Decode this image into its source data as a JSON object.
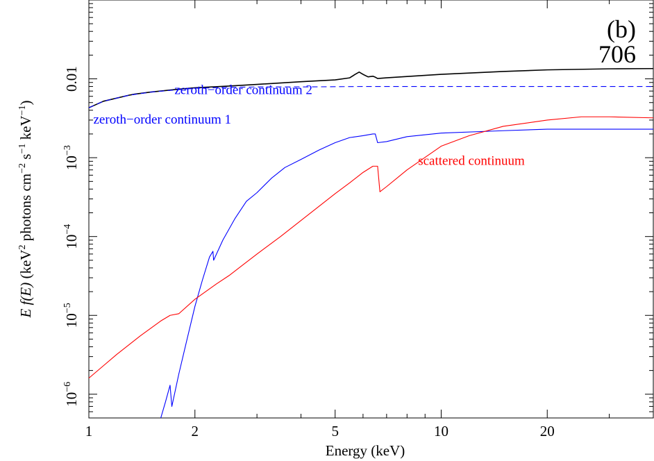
{
  "chart_data": {
    "type": "line",
    "panel_label": "(b)",
    "panel_id": "706",
    "xlabel": "Energy (keV)",
    "ylabel_parts": {
      "E": "E",
      "fE": "f(E)",
      "open": " (keV",
      "exp2": "2",
      "photons": " photons cm",
      "expm2": "−2",
      "s": " s",
      "expm1": "−1",
      "kev": " keV",
      "expm1b": "−1",
      "close": ")"
    },
    "x_scale": "log",
    "y_scale": "log",
    "xlim": [
      1,
      40
    ],
    "ylim": [
      5e-07,
      0.1
    ],
    "x_ticks": [
      {
        "value": 1,
        "label": "1"
      },
      {
        "value": 2,
        "label": "2"
      },
      {
        "value": 5,
        "label": "5"
      },
      {
        "value": 10,
        "label": "10"
      },
      {
        "value": 20,
        "label": "20"
      }
    ],
    "y_ticks": [
      {
        "value": 0.01,
        "base": "0.01",
        "exp": ""
      },
      {
        "value": 0.001,
        "base": "10",
        "exp": "−3"
      },
      {
        "value": 0.0001,
        "base": "10",
        "exp": "−4"
      },
      {
        "value": 1e-05,
        "base": "10",
        "exp": "−5"
      },
      {
        "value": 1e-06,
        "base": "10",
        "exp": "−6"
      }
    ],
    "annotations": [
      {
        "text": "zeroth−order continuum 2",
        "x": 1.75,
        "y": 0.0064,
        "color": "#0000ff"
      },
      {
        "text": "zeroth−order continuum 1",
        "x": 1.03,
        "y": 0.0027,
        "color": "#0000ff"
      },
      {
        "text": "scattered continuum",
        "x": 8.6,
        "y": 0.00081,
        "color": "#ff0000"
      }
    ],
    "series": [
      {
        "color": "#000000",
        "style": "solid",
        "x": [
          1.0,
          1.1,
          1.3,
          1.35,
          1.5,
          1.8,
          2.0,
          2.5,
          3.0,
          4.0,
          5.0,
          5.5,
          5.7,
          5.85,
          6.0,
          6.2,
          6.4,
          6.5,
          6.6,
          6.8,
          7.0,
          8.0,
          10.0,
          15.0,
          20.0,
          30.0,
          40.0
        ],
        "y": [
          0.0043,
          0.0052,
          0.0062,
          0.0064,
          0.0068,
          0.0074,
          0.0077,
          0.0081,
          0.0085,
          0.0092,
          0.0097,
          0.0103,
          0.0114,
          0.0122,
          0.0114,
          0.0106,
          0.0108,
          0.0105,
          0.0101,
          0.0102,
          0.0103,
          0.0107,
          0.0114,
          0.0124,
          0.013,
          0.0134,
          0.0135
        ]
      },
      {
        "color": "#0000ff",
        "style": "dashed",
        "x": [
          1.0,
          1.1,
          1.3,
          1.5,
          1.8,
          2.0,
          2.5,
          3.0,
          4.0,
          6.0,
          10.0,
          20.0,
          40.0
        ],
        "y": [
          0.0043,
          0.0052,
          0.0062,
          0.0068,
          0.0073,
          0.0076,
          0.0078,
          0.0079,
          0.0079,
          0.008,
          0.008,
          0.008,
          0.008
        ]
      },
      {
        "color": "#0000ff",
        "style": "solid",
        "x": [
          1.6,
          1.65,
          1.7,
          1.72,
          1.8,
          1.9,
          2.0,
          2.1,
          2.2,
          2.25,
          2.26,
          2.4,
          2.6,
          2.8,
          3.0,
          3.3,
          3.6,
          4.0,
          4.5,
          5.0,
          5.5,
          6.0,
          6.4,
          6.5,
          6.6,
          7.0,
          8.0,
          10.0,
          15.0,
          20.0,
          30.0,
          40.0
        ],
        "y": [
          5e-07,
          8e-07,
          1.3e-06,
          7e-07,
          1.8e-06,
          5e-06,
          1.3e-05,
          2.8e-05,
          5.5e-05,
          6.5e-05,
          5e-05,
          9e-05,
          0.00017,
          0.00028,
          0.00036,
          0.00055,
          0.00075,
          0.00095,
          0.00125,
          0.00155,
          0.0018,
          0.0019,
          0.002,
          0.002,
          0.00155,
          0.0016,
          0.00185,
          0.00205,
          0.0022,
          0.0023,
          0.0023,
          0.0023
        ]
      },
      {
        "color": "#ff0000",
        "style": "solid",
        "x": [
          1.0,
          1.1,
          1.2,
          1.4,
          1.6,
          1.7,
          1.8,
          2.0,
          2.3,
          2.5,
          3.0,
          3.5,
          4.0,
          5.0,
          5.5,
          6.0,
          6.4,
          6.6,
          6.7,
          7.0,
          8.0,
          10.0,
          12.0,
          15.0,
          20.0,
          25.0,
          30.0,
          40.0
        ],
        "y": [
          1.6e-06,
          2.3e-06,
          3.2e-06,
          5.5e-06,
          8.5e-06,
          1e-05,
          1.05e-05,
          1.6e-05,
          2.5e-05,
          3.2e-05,
          6e-05,
          0.0001,
          0.00016,
          0.00035,
          0.00048,
          0.00065,
          0.00078,
          0.00078,
          0.00037,
          0.00043,
          0.0007,
          0.0014,
          0.0019,
          0.0025,
          0.003,
          0.0033,
          0.0033,
          0.0032
        ]
      }
    ]
  }
}
